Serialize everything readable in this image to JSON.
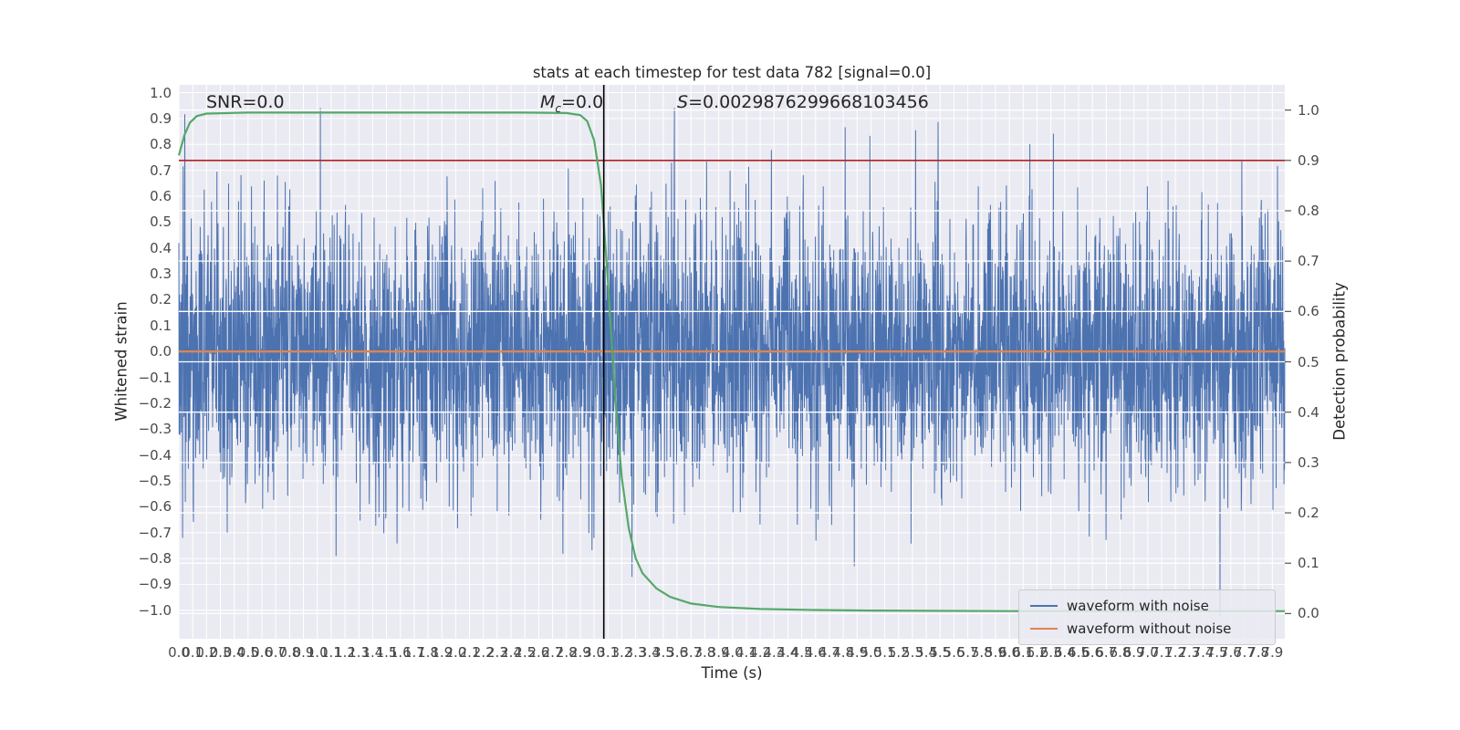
{
  "figure": {
    "title": "stats at each timestep for test data 782 [signal=0.0]",
    "xlabel": "Time (s)",
    "ylabel_left": "Whitened strain",
    "ylabel_right": "Detection probability",
    "background": "#ffffff",
    "axes_background": "#eaeaf2",
    "grid_color": "#ffffff",
    "text_color": "#262626"
  },
  "annotations": {
    "snr": {
      "text": "SNR=0.0"
    },
    "mc": {
      "symbol": "M",
      "subscript": "c",
      "rest": "=0.0"
    },
    "s": {
      "symbol": "S",
      "rest": "=0.0029876299668103456"
    }
  },
  "legend": {
    "items": [
      {
        "label": "waveform with noise",
        "color": "#4c72b0"
      },
      {
        "label": "waveform without noise",
        "color": "#dd8452"
      }
    ]
  },
  "chart_data": {
    "type": "line",
    "title": "stats at each timestep for test data 782 [signal=0.0]",
    "xlabel": "Time (s)",
    "ylabel_left": "Whitened strain",
    "ylabel_right": "Detection probability",
    "grid": true,
    "xlim": [
      0,
      7.99
    ],
    "ylim_left": [
      -1.11,
      1.03
    ],
    "ylim_right": [
      -0.05,
      1.05
    ],
    "x_ticks": [
      0,
      0.1,
      0.2,
      0.3,
      0.4,
      0.5,
      0.6,
      0.7,
      0.8,
      0.9,
      1,
      1.1,
      1.2,
      1.3,
      1.4,
      1.5,
      1.6,
      1.7,
      1.8,
      1.9,
      2,
      2.1,
      2.2,
      2.3,
      2.4,
      2.5,
      2.6,
      2.7,
      2.8,
      2.9,
      3,
      3.1,
      3.2,
      3.3,
      3.4,
      3.5,
      3.6,
      3.7,
      3.8,
      3.9,
      4,
      4.1,
      4.2,
      4.3,
      4.4,
      4.5,
      4.6,
      4.7,
      4.8,
      4.9,
      5,
      5.1,
      5.2,
      5.3,
      5.4,
      5.5,
      5.6,
      5.7,
      5.8,
      5.9,
      6,
      6.1,
      6.2,
      6.3,
      6.4,
      6.5,
      6.6,
      6.7,
      6.8,
      6.9,
      7,
      7.1,
      7.2,
      7.3,
      7.4,
      7.5,
      7.6,
      7.7,
      7.8,
      7.9
    ],
    "y_ticks_left": [
      1,
      0.9,
      0.8,
      0.7,
      0.6,
      0.5,
      0.4,
      0.3,
      0.2,
      0.1,
      0,
      -0.1,
      -0.2,
      -0.3,
      -0.4,
      -0.5,
      -0.6,
      -0.7,
      -0.8,
      -0.9,
      -1
    ],
    "y_ticks_right": [
      1,
      0.9,
      0.8,
      0.7,
      0.6,
      0.5,
      0.4,
      0.3,
      0.2,
      0.1,
      0
    ],
    "series": [
      {
        "name": "waveform with noise",
        "axis": "left",
        "color": "#4c72b0",
        "style": "noise",
        "n_points": 4096,
        "seed": 782,
        "sigma": 0.26,
        "spike_prob": 0.02,
        "spike_scale": 1.6,
        "clip": [
          -1.02,
          0.94
        ]
      },
      {
        "name": "waveform without noise",
        "axis": "left",
        "color": "#dd8452",
        "style": "flat",
        "value": 0.0
      },
      {
        "name": "detection probability",
        "axis": "right",
        "color": "#55a868",
        "style": "points",
        "points": [
          [
            0,
            0.91
          ],
          [
            0.04,
            0.95
          ],
          [
            0.08,
            0.975
          ],
          [
            0.13,
            0.988
          ],
          [
            0.2,
            0.993
          ],
          [
            0.5,
            0.995
          ],
          [
            1.0,
            0.995
          ],
          [
            1.5,
            0.995
          ],
          [
            2.0,
            0.995
          ],
          [
            2.5,
            0.995
          ],
          [
            2.8,
            0.994
          ],
          [
            2.9,
            0.99
          ],
          [
            2.95,
            0.978
          ],
          [
            3.0,
            0.94
          ],
          [
            3.05,
            0.85
          ],
          [
            3.1,
            0.66
          ],
          [
            3.15,
            0.44
          ],
          [
            3.2,
            0.27
          ],
          [
            3.25,
            0.17
          ],
          [
            3.3,
            0.11
          ],
          [
            3.35,
            0.08
          ],
          [
            3.45,
            0.05
          ],
          [
            3.55,
            0.033
          ],
          [
            3.7,
            0.02
          ],
          [
            3.9,
            0.013
          ],
          [
            4.2,
            0.009
          ],
          [
            4.6,
            0.007
          ],
          [
            5.0,
            0.006
          ],
          [
            6.0,
            0.005
          ],
          [
            7.0,
            0.005
          ],
          [
            7.99,
            0.005
          ]
        ]
      },
      {
        "name": "detection threshold",
        "axis": "right",
        "color": "#b22222",
        "style": "hline",
        "value": 0.9
      },
      {
        "name": "event time marker",
        "axis": "x",
        "color": "#000000",
        "style": "vline",
        "value": 3.07
      }
    ]
  }
}
